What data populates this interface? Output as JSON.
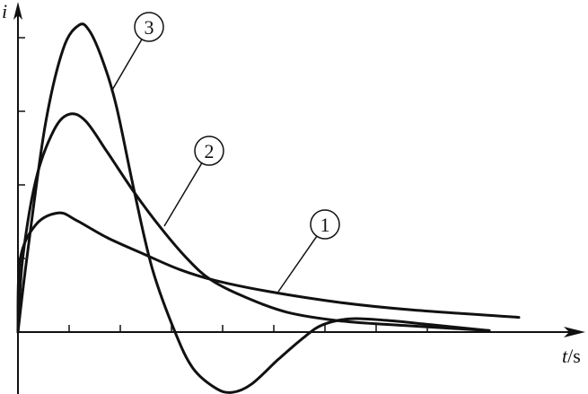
{
  "chart_data": {
    "type": "line",
    "title": "",
    "xlabel_var": "t",
    "xlabel_unit": "/s",
    "ylabel": "i",
    "xlim": [
      0,
      11
    ],
    "ylim": [
      -0.85,
      4.4
    ],
    "x_ticks": [
      1,
      2,
      3,
      4,
      5,
      6,
      7,
      8
    ],
    "y_ticks": [
      1,
      2,
      3,
      4
    ],
    "tick_labels_shown": false,
    "grid": false,
    "line_color": "#111111",
    "series": [
      {
        "name": "1",
        "x": [
          0,
          0.04,
          0.35,
          0.79,
          1.14,
          1.75,
          2.46,
          3.16,
          3.86,
          4.91,
          6.32,
          7.72,
          9.79
        ],
        "y": [
          0,
          0.98,
          1.46,
          1.62,
          1.52,
          1.28,
          1.06,
          0.85,
          0.7,
          0.55,
          0.4,
          0.3,
          0.2
        ]
      },
      {
        "name": "2",
        "x": [
          0,
          0.09,
          0.35,
          0.7,
          1.0,
          1.32,
          1.75,
          2.28,
          2.81,
          3.33,
          3.77,
          4.39,
          5.26,
          6.32,
          7.54,
          9.21
        ],
        "y": [
          0,
          0.98,
          2.07,
          2.74,
          2.96,
          2.87,
          2.44,
          1.89,
          1.4,
          0.98,
          0.71,
          0.49,
          0.27,
          0.15,
          0.09,
          0.02
        ]
      },
      {
        "name": "3",
        "x": [
          0,
          0.18,
          0.53,
          0.88,
          1.19,
          1.4,
          1.67,
          1.93,
          2.28,
          2.63,
          3.07,
          3.42,
          3.86,
          4.18,
          4.56,
          5.09,
          5.61,
          5.96,
          6.49,
          7.19,
          8.07,
          9.21
        ],
        "y": [
          0,
          1.04,
          2.8,
          3.84,
          4.17,
          4.09,
          3.66,
          3.05,
          1.89,
          0.85,
          0,
          -0.49,
          -0.76,
          -0.82,
          -0.71,
          -0.37,
          -0.06,
          0.1,
          0.18,
          0.16,
          0.1,
          0.02
        ]
      }
    ],
    "annotations": [
      {
        "label": "1",
        "style": "circled",
        "points_to_series": "1"
      },
      {
        "label": "2",
        "style": "circled",
        "points_to_series": "2"
      },
      {
        "label": "3",
        "style": "circled",
        "points_to_series": "3"
      }
    ]
  }
}
